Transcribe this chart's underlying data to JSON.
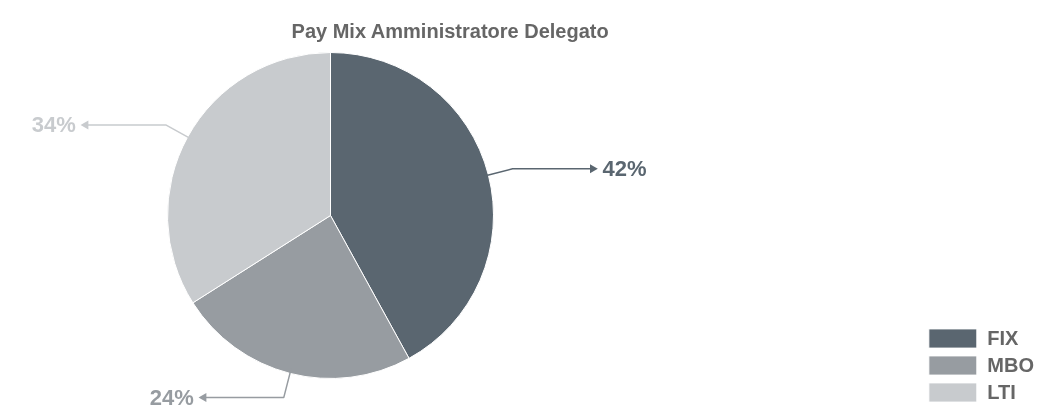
{
  "chart_data": {
    "type": "pie",
    "title": "Pay Mix Amministratore Delegato",
    "categories": [
      "FIX",
      "MBO",
      "LTI"
    ],
    "values": [
      42,
      24,
      34
    ],
    "colors": [
      "#5a6670",
      "#979ca1",
      "#c8cbce"
    ],
    "value_labels": [
      "42%",
      "24%",
      "34%"
    ],
    "legend": "bottom right"
  }
}
